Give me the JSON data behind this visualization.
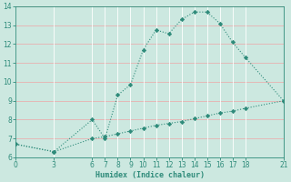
{
  "xlabel": "Humidex (Indice chaleur)",
  "upper_x": [
    0,
    3,
    6,
    7,
    8,
    9,
    10,
    11,
    12,
    13,
    14,
    15,
    16,
    17,
    18,
    21
  ],
  "upper_y": [
    6.7,
    6.3,
    8.0,
    7.0,
    9.3,
    9.85,
    11.7,
    12.75,
    12.55,
    13.3,
    13.7,
    13.7,
    13.1,
    12.1,
    11.3,
    9.0
  ],
  "lower_x": [
    0,
    3,
    6,
    7,
    8,
    9,
    10,
    11,
    12,
    13,
    14,
    15,
    16,
    17,
    18,
    21
  ],
  "lower_y": [
    6.7,
    6.3,
    7.0,
    7.1,
    7.25,
    7.4,
    7.55,
    7.7,
    7.8,
    7.9,
    8.05,
    8.2,
    8.35,
    8.45,
    8.6,
    9.0
  ],
  "line_color": "#2e8b7a",
  "bg_color": "#cce8e0",
  "hgrid_color": "#e8b0b0",
  "vgrid_color": "#ffffff",
  "ylim": [
    6,
    14
  ],
  "xlim": [
    0,
    21
  ],
  "yticks": [
    6,
    7,
    8,
    9,
    10,
    11,
    12,
    13,
    14
  ],
  "xticks": [
    0,
    3,
    6,
    7,
    8,
    9,
    10,
    11,
    12,
    13,
    14,
    15,
    16,
    17,
    18,
    21
  ]
}
